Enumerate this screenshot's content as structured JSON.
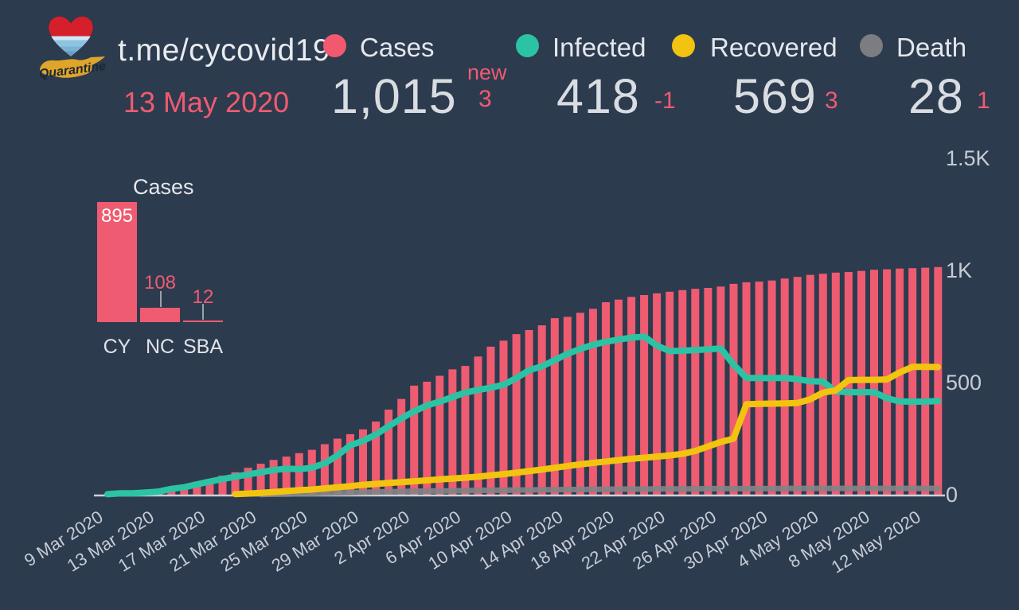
{
  "header": {
    "site": "t.me/cycovid19",
    "date": "13 May 2020",
    "logo": {
      "name": "quarantine-heart-logo",
      "script_text": "Quarantine"
    },
    "stats": {
      "cases": {
        "label": "Cases",
        "value": "1,015",
        "delta_prefix": "new",
        "delta": "3",
        "color": "#f2596f"
      },
      "infected": {
        "label": "Infected",
        "value": "418",
        "delta": "-1",
        "color": "#2bc3a4"
      },
      "recovered": {
        "label": "Recovered",
        "value": "569",
        "delta": "3",
        "color": "#f2c40f"
      },
      "death": {
        "label": "Death",
        "value": "28",
        "delta": "1",
        "color": "#7c7d80"
      }
    }
  },
  "colors": {
    "background": "#2d3b4f",
    "cases_pink": "#ef5b70",
    "infected_teal": "#2bc3a4",
    "recovered_yellow": "#f2c40f",
    "death_gray": "#828387",
    "axis_line": "#ccd1d8",
    "tick_text": "#c6ccd5"
  },
  "chart_data": [
    {
      "type": "bar",
      "title": "Cases",
      "categories": [
        "CY",
        "NC",
        "SBA"
      ],
      "values": [
        895,
        108,
        12
      ],
      "bar_color": "#ef5b70",
      "value_label_colors": [
        "#ffffff",
        "#ef5b70",
        "#ef5b70"
      ]
    },
    {
      "type": "bar+line",
      "title": "COVID-19 daily totals, 9 Mar 2020 - 13 May 2020",
      "x_axis": {
        "start": "9 Mar 2020",
        "end": "13 May 2020",
        "tick_every_days": 4,
        "tick_labels": [
          "9 Mar 2020",
          "13 Mar 2020",
          "17 Mar 2020",
          "21 Mar 2020",
          "25 Mar 2020",
          "29 Mar 2020",
          "2 Apr 2020",
          "6 Apr 2020",
          "10 Apr 2020",
          "14 Apr 2020",
          "18 Apr 2020",
          "22 Apr 2020",
          "26 Apr 2020",
          "30 Apr 2020",
          "4 May 2020",
          "8 May 2020",
          "12 May 2020"
        ]
      },
      "y_axis": {
        "tick_labels": [
          "0",
          "500",
          "1K",
          "1.5K"
        ],
        "tick_values": [
          0,
          500,
          1000,
          1500
        ],
        "max": 1500,
        "position": "right",
        "grid": false
      },
      "series": [
        {
          "name": "Cases",
          "type": "bar",
          "color": "#ef5b70",
          "values": [
            2,
            6,
            10,
            14,
            21,
            33,
            46,
            58,
            70,
            85,
            100,
            120,
            138,
            155,
            170,
            185,
            200,
            225,
            250,
            270,
            291,
            326,
            379,
            427,
            486,
            504,
            530,
            559,
            574,
            616,
            660,
            687,
            716,
            734,
            755,
            787,
            793,
            811,
            829,
            858,
            870,
            882,
            890,
            898,
            905,
            912,
            918,
            922,
            928,
            940,
            947,
            950,
            955,
            964,
            971,
            980,
            985,
            990,
            993,
            998,
            1003,
            1005,
            1008,
            1010,
            1012,
            1015
          ]
        },
        {
          "name": "Infected",
          "type": "line",
          "color": "#2bc3a4",
          "values": [
            2,
            6,
            6,
            10,
            14,
            26,
            33,
            46,
            58,
            70,
            80,
            90,
            100,
            110,
            116,
            114,
            120,
            140,
            175,
            220,
            240,
            268,
            305,
            340,
            372,
            398,
            415,
            435,
            455,
            467,
            477,
            490,
            520,
            555,
            572,
            600,
            628,
            650,
            668,
            682,
            692,
            700,
            705,
            665,
            640,
            642,
            645,
            648,
            652,
            580,
            521,
            520,
            520,
            521,
            515,
            506,
            504,
            460,
            457,
            457,
            457,
            430,
            416,
            415,
            415,
            418
          ]
        },
        {
          "name": "Recovered",
          "type": "line",
          "color": "#f2c40f",
          "values": [
            0,
            0,
            0,
            0,
            0,
            0,
            0,
            0,
            0,
            0,
            3,
            5,
            8,
            12,
            16,
            20,
            23,
            28,
            33,
            38,
            44,
            48,
            52,
            56,
            60,
            64,
            68,
            72,
            76,
            80,
            86,
            92,
            98,
            105,
            112,
            120,
            128,
            135,
            142,
            148,
            154,
            160,
            165,
            170,
            175,
            182,
            195,
            215,
            235,
            250,
            403,
            405,
            406,
            407,
            409,
            425,
            455,
            465,
            511,
            512,
            512,
            514,
            545,
            570,
            570,
            569
          ]
        },
        {
          "name": "Death",
          "type": "line",
          "color": "#828387",
          "values": [
            0,
            0,
            0,
            0,
            0,
            0,
            0,
            0,
            0,
            0,
            0,
            0,
            1,
            2,
            3,
            4,
            5,
            7,
            8,
            9,
            11,
            12,
            13,
            14,
            15,
            16,
            17,
            17,
            18,
            19,
            20,
            20,
            21,
            21,
            22,
            22,
            23,
            23,
            24,
            24,
            25,
            25,
            25,
            26,
            26,
            26,
            26,
            27,
            27,
            27,
            27,
            27,
            27,
            28,
            28,
            28,
            28,
            28,
            28,
            28,
            28,
            28,
            28,
            28,
            28,
            28
          ]
        }
      ]
    }
  ]
}
